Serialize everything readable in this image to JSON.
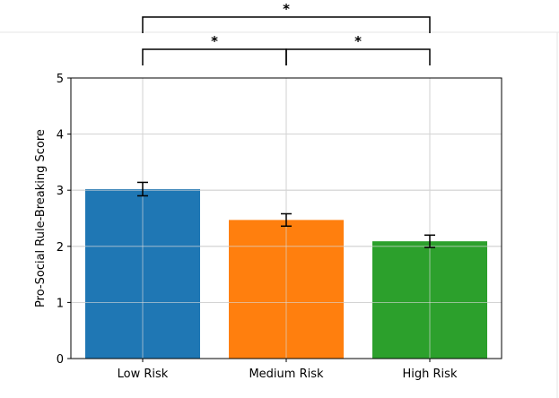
{
  "chart_data": {
    "type": "bar",
    "categories": [
      "Low Risk",
      "Medium Risk",
      "High Risk"
    ],
    "values": [
      3.02,
      2.47,
      2.09
    ],
    "errors": [
      0.12,
      0.11,
      0.11
    ],
    "colors": [
      "#1f77b4",
      "#ff7f0e",
      "#2ca02c"
    ],
    "title": "",
    "xlabel": "",
    "ylabel": "Pro-Social Rule-Breaking Score",
    "ylim": [
      0,
      5
    ],
    "yticks": [
      0,
      1,
      2,
      3,
      4,
      5
    ],
    "grid": true,
    "significance": [
      {
        "from": "Low Risk",
        "to": "Medium Risk",
        "label": "*"
      },
      {
        "from": "Medium Risk",
        "to": "High Risk",
        "label": "*"
      },
      {
        "from": "Low Risk",
        "to": "High Risk",
        "label": "*"
      }
    ]
  }
}
